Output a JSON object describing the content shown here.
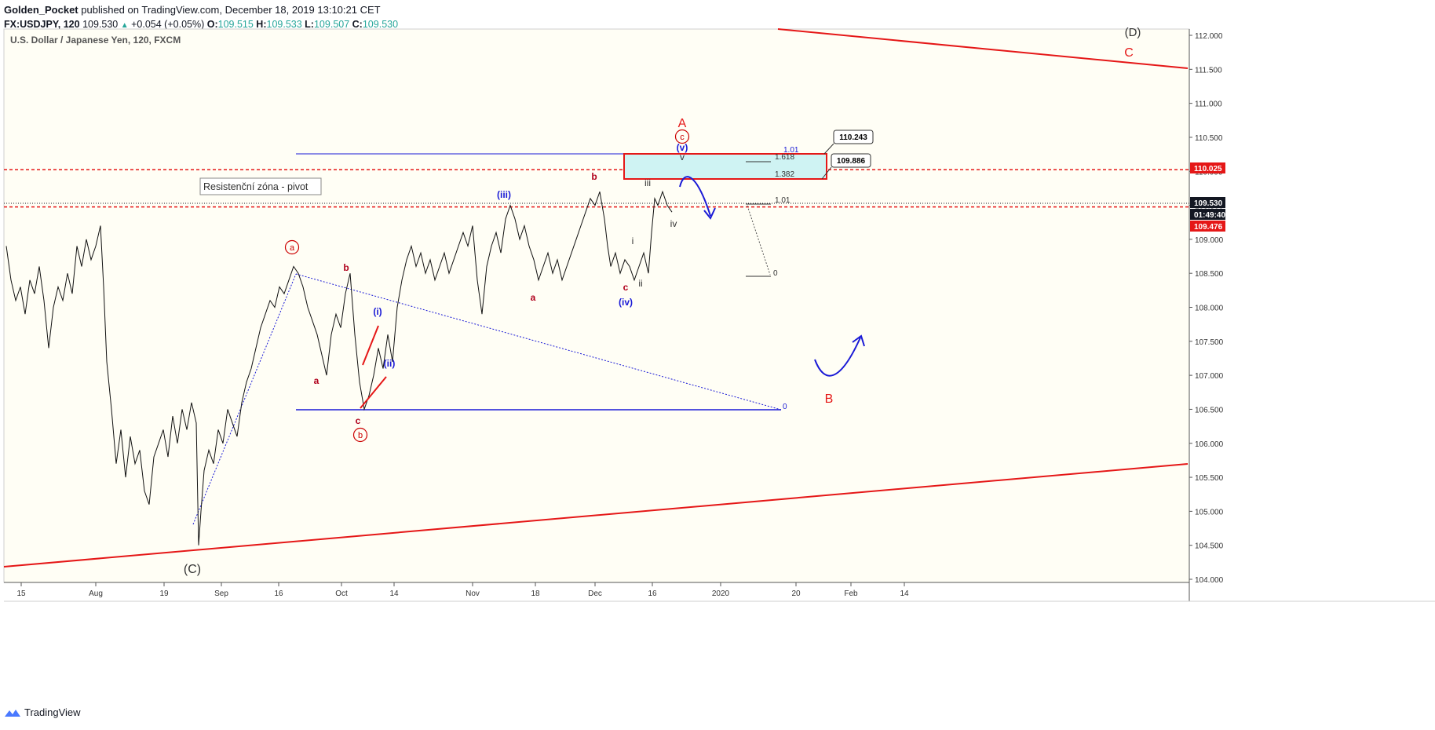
{
  "header": {
    "publisher": "Golden_Pocket",
    "published_text": " published on TradingView.com, December 18, 2019 13:10:21 CET",
    "symbol": "FX:USDJPY, 120",
    "last": "109.530",
    "change": "+0.054 (+0.05%)",
    "o_label": "O:",
    "o": "109.515",
    "h_label": "H:",
    "h": "109.533",
    "l_label": "L:",
    "l": "109.507",
    "c_label": "C:",
    "c": "109.530"
  },
  "instrument_title": "U.S. Dollar / Japanese Yen, 120, FXCM",
  "annotation_box": "Resistenční zóna - pivot",
  "footer": {
    "brand": "TradingView"
  },
  "colors": {
    "bg": "#fffef5",
    "red": "#e51717",
    "blue": "#1a1ad6",
    "darkred": "#b0001c",
    "teal": "#26a69a",
    "zone_fill": "#cff3f3"
  },
  "chart_data": {
    "type": "line",
    "ylim": [
      103.9,
      112.1
    ],
    "y_ticks": [
      "112.000",
      "111.500",
      "111.000",
      "110.500",
      "110.000",
      "109.500",
      "109.000",
      "108.500",
      "108.000",
      "107.500",
      "107.000",
      "106.500",
      "106.000",
      "105.500",
      "105.000",
      "104.500",
      "104.000"
    ],
    "x_ticks": [
      "15",
      "Aug",
      "19",
      "Sep",
      "16",
      "Oct",
      "14",
      "Nov",
      "18",
      "Dec",
      "16",
      "2020",
      "20",
      "Feb",
      "14"
    ],
    "price_tags": [
      {
        "label": "110.025",
        "value": 110.025,
        "color": "#e51717"
      },
      {
        "label": "109.530",
        "value": 109.53,
        "color": "#131722"
      },
      {
        "label": "01:49:40",
        "value": 109.4,
        "color": "#131722"
      },
      {
        "label": "109.476",
        "value": 109.476,
        "color": "#e51717"
      }
    ],
    "callouts": [
      "110.243",
      "109.886"
    ],
    "fib_labels": {
      "top": "1.01",
      "f1618": "1.618",
      "f1382": "1.382",
      "f101b": "1.01",
      "zero_a": "0",
      "zero_b": "0"
    },
    "wave_labels": {
      "D": "(D)",
      "C_red": "C",
      "A": "A",
      "c_circ": "c",
      "v_paren": "(v)",
      "v": "v",
      "b_top": "b",
      "iii_paren": "(iii)",
      "iii": "iii",
      "iv": "iv",
      "i": "i",
      "ii": "ii",
      "iv_paren": "(iv)",
      "c_low": "c",
      "a_nov": "a",
      "a_circ": "a",
      "b_oct": "b",
      "a_oct": "a",
      "i_paren": "(i)",
      "ii_paren": "(ii)",
      "c_oct": "c",
      "b_circ": "b",
      "B": "B",
      "C_paren": "(C)"
    },
    "price_path": [
      [
        0,
        108.9
      ],
      [
        6,
        108.4
      ],
      [
        12,
        108.1
      ],
      [
        18,
        108.3
      ],
      [
        24,
        107.9
      ],
      [
        30,
        108.4
      ],
      [
        36,
        108.2
      ],
      [
        42,
        108.6
      ],
      [
        48,
        108.1
      ],
      [
        54,
        107.4
      ],
      [
        60,
        108.0
      ],
      [
        66,
        108.3
      ],
      [
        72,
        108.1
      ],
      [
        78,
        108.5
      ],
      [
        84,
        108.2
      ],
      [
        90,
        108.9
      ],
      [
        96,
        108.6
      ],
      [
        102,
        109.0
      ],
      [
        108,
        108.7
      ],
      [
        114,
        108.9
      ],
      [
        120,
        109.2
      ],
      [
        124,
        108.3
      ],
      [
        128,
        107.2
      ],
      [
        134,
        106.5
      ],
      [
        140,
        105.7
      ],
      [
        146,
        106.2
      ],
      [
        152,
        105.5
      ],
      [
        158,
        106.1
      ],
      [
        164,
        105.7
      ],
      [
        170,
        105.9
      ],
      [
        176,
        105.3
      ],
      [
        182,
        105.1
      ],
      [
        188,
        105.8
      ],
      [
        194,
        106.0
      ],
      [
        200,
        106.2
      ],
      [
        206,
        105.8
      ],
      [
        212,
        106.4
      ],
      [
        218,
        106.0
      ],
      [
        224,
        106.5
      ],
      [
        230,
        106.2
      ],
      [
        236,
        106.6
      ],
      [
        242,
        106.3
      ],
      [
        245,
        104.5
      ],
      [
        248,
        105.0
      ],
      [
        252,
        105.6
      ],
      [
        258,
        105.9
      ],
      [
        264,
        105.7
      ],
      [
        270,
        106.2
      ],
      [
        276,
        106.0
      ],
      [
        282,
        106.5
      ],
      [
        288,
        106.3
      ],
      [
        294,
        106.1
      ],
      [
        300,
        106.6
      ],
      [
        306,
        106.9
      ],
      [
        312,
        107.1
      ],
      [
        318,
        107.4
      ],
      [
        324,
        107.7
      ],
      [
        330,
        107.9
      ],
      [
        336,
        108.1
      ],
      [
        342,
        108.0
      ],
      [
        348,
        108.3
      ],
      [
        354,
        108.2
      ],
      [
        360,
        108.4
      ],
      [
        366,
        108.6
      ],
      [
        372,
        108.5
      ],
      [
        378,
        108.3
      ],
      [
        384,
        108.0
      ],
      [
        390,
        107.8
      ],
      [
        396,
        107.6
      ],
      [
        402,
        107.3
      ],
      [
        408,
        107.0
      ],
      [
        414,
        107.6
      ],
      [
        420,
        107.9
      ],
      [
        426,
        107.7
      ],
      [
        432,
        108.2
      ],
      [
        438,
        108.5
      ],
      [
        444,
        107.6
      ],
      [
        450,
        106.9
      ],
      [
        456,
        106.5
      ],
      [
        462,
        106.7
      ],
      [
        468,
        107.0
      ],
      [
        474,
        107.4
      ],
      [
        480,
        107.1
      ],
      [
        486,
        107.6
      ],
      [
        492,
        107.2
      ],
      [
        498,
        108.0
      ],
      [
        504,
        108.4
      ],
      [
        510,
        108.7
      ],
      [
        516,
        108.9
      ],
      [
        522,
        108.6
      ],
      [
        528,
        108.8
      ],
      [
        534,
        108.5
      ],
      [
        540,
        108.7
      ],
      [
        546,
        108.4
      ],
      [
        552,
        108.6
      ],
      [
        558,
        108.8
      ],
      [
        564,
        108.5
      ],
      [
        570,
        108.7
      ],
      [
        576,
        108.9
      ],
      [
        582,
        109.1
      ],
      [
        588,
        108.9
      ],
      [
        594,
        109.2
      ],
      [
        600,
        108.4
      ],
      [
        606,
        107.9
      ],
      [
        612,
        108.6
      ],
      [
        618,
        108.9
      ],
      [
        624,
        109.1
      ],
      [
        630,
        108.8
      ],
      [
        636,
        109.3
      ],
      [
        642,
        109.5
      ],
      [
        648,
        109.3
      ],
      [
        654,
        109.0
      ],
      [
        660,
        109.2
      ],
      [
        666,
        108.9
      ],
      [
        672,
        108.7
      ],
      [
        678,
        108.4
      ],
      [
        684,
        108.6
      ],
      [
        690,
        108.8
      ],
      [
        696,
        108.5
      ],
      [
        702,
        108.7
      ],
      [
        708,
        108.4
      ],
      [
        714,
        108.6
      ],
      [
        720,
        108.8
      ],
      [
        726,
        109.0
      ],
      [
        732,
        109.2
      ],
      [
        738,
        109.4
      ],
      [
        744,
        109.6
      ],
      [
        750,
        109.5
      ],
      [
        756,
        109.7
      ],
      [
        762,
        109.3
      ],
      [
        766,
        108.9
      ],
      [
        770,
        108.6
      ],
      [
        776,
        108.8
      ],
      [
        782,
        108.5
      ],
      [
        788,
        108.7
      ],
      [
        794,
        108.6
      ],
      [
        800,
        108.4
      ],
      [
        806,
        108.6
      ],
      [
        812,
        108.8
      ],
      [
        818,
        108.5
      ],
      [
        822,
        109.1
      ],
      [
        826,
        109.6
      ],
      [
        830,
        109.5
      ],
      [
        836,
        109.7
      ],
      [
        842,
        109.5
      ],
      [
        848,
        109.4
      ]
    ],
    "lines": {
      "upper_trend": [
        [
          991,
          37
        ],
        [
          1513,
          87
        ]
      ],
      "lower_trend": [
        [
          5,
          722
        ],
        [
          1513,
          591
        ]
      ],
      "blue_top": [
        [
          377,
          196
        ],
        [
          1052,
          196
        ]
      ],
      "blue_bottom": [
        [
          377,
          522
        ],
        [
          995,
          522
        ]
      ],
      "blue_dotted": [
        [
          377,
          349
        ],
        [
          995,
          522
        ]
      ],
      "blue_dotted2": [
        [
          246,
          668
        ],
        [
          377,
          349
        ]
      ]
    }
  }
}
